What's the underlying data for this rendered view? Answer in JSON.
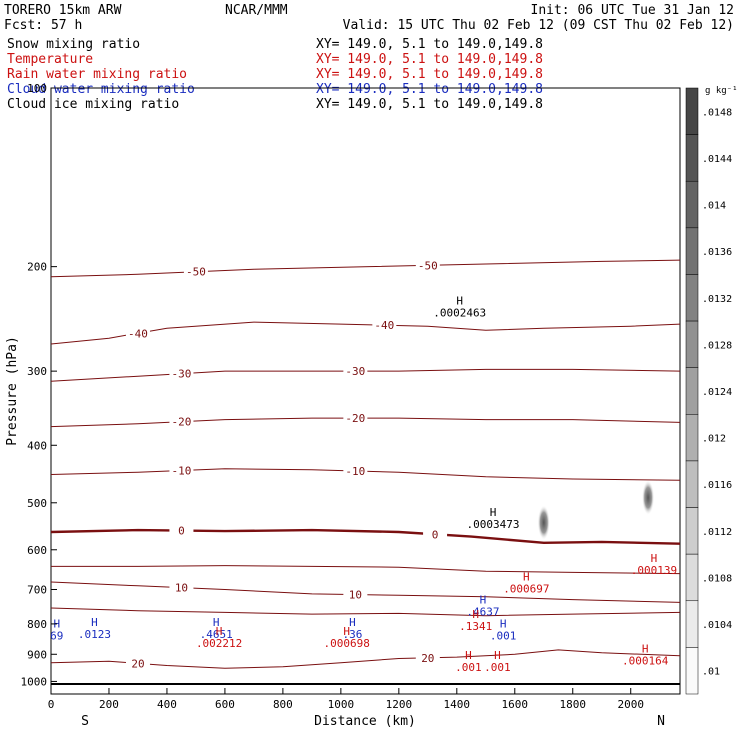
{
  "header": {
    "run": "TORERO  15km ARW",
    "center": "NCAR/MMM",
    "init": "Init: 06 UTC Tue 31 Jan 12",
    "fcst": "Fcst:   57 h",
    "valid": "Valid: 15 UTC Thu 02 Feb 12 (09 CST Thu 02 Feb 12)"
  },
  "colors": {
    "snow": "#000000",
    "temperature": "#7a0f10",
    "rain": "#cc1111",
    "cloud_water": "#1a2dbf",
    "cloud_ice": "#000000"
  },
  "chart_data": {
    "type": "contour_cross_section",
    "fields": [
      {
        "name": "Snow mixing ratio",
        "xy": "XY= 149.0,  5.1 to 149.0,149.8",
        "style": "shaded"
      },
      {
        "name": "Temperature",
        "xy": "XY= 149.0,  5.1 to 149.0,149.8",
        "style": "contour"
      },
      {
        "name": "Rain water mixing ratio",
        "xy": "XY= 149.0,  5.1 to 149.0,149.8",
        "style": "dashed contour"
      },
      {
        "name": "Cloud water mixing ratio",
        "xy": "XY= 149.0,  5.1 to 149.0,149.8",
        "style": "contour"
      },
      {
        "name": "Cloud ice mixing ratio",
        "xy": "XY= 149.0,  5.1 to 149.0,149.8",
        "style": "contour"
      }
    ],
    "xaxis": {
      "label": "Distance (km)",
      "range": [
        0,
        2170
      ],
      "ticks": [
        0,
        200,
        400,
        600,
        800,
        1000,
        1200,
        1400,
        1600,
        1800,
        2000
      ],
      "left_end": "S",
      "right_end": "N"
    },
    "yaxis": {
      "label": "Pressure (hPa)",
      "range": [
        1050,
        100
      ],
      "scale": "log",
      "ticks": [
        1000,
        900,
        800,
        700,
        600,
        500,
        400,
        300,
        200,
        100
      ]
    },
    "colorbar": {
      "unit": "g kg⁻¹",
      "ticks": [
        ".0148",
        ".0144",
        ".014",
        ".0136",
        ".0132",
        ".0128",
        ".0124",
        ".012",
        ".0116",
        ".0112",
        ".0108",
        ".0104",
        ".01"
      ]
    },
    "temperature_contours": [
      {
        "value": -50,
        "label": "-50",
        "points": [
          [
            0,
            208
          ],
          [
            300,
            206
          ],
          [
            700,
            202
          ],
          [
            1100,
            200
          ],
          [
            1500,
            198
          ],
          [
            1900,
            196
          ],
          [
            2170,
            195
          ]
        ]
      },
      {
        "value": -40,
        "label": "-40",
        "points": [
          [
            0,
            270
          ],
          [
            200,
            264
          ],
          [
            400,
            254
          ],
          [
            700,
            248
          ],
          [
            1000,
            250
          ],
          [
            1300,
            252
          ],
          [
            1500,
            256
          ],
          [
            1700,
            254
          ],
          [
            2000,
            252
          ],
          [
            2170,
            250
          ]
        ]
      },
      {
        "value": -30,
        "label": "-30",
        "points": [
          [
            0,
            312
          ],
          [
            300,
            306
          ],
          [
            600,
            300
          ],
          [
            900,
            300
          ],
          [
            1200,
            300
          ],
          [
            1500,
            298
          ],
          [
            1800,
            298
          ],
          [
            2170,
            300
          ]
        ]
      },
      {
        "value": -20,
        "label": "-20",
        "points": [
          [
            0,
            372
          ],
          [
            300,
            368
          ],
          [
            600,
            362
          ],
          [
            900,
            360
          ],
          [
            1200,
            360
          ],
          [
            1500,
            362
          ],
          [
            1800,
            362
          ],
          [
            2170,
            366
          ]
        ]
      },
      {
        "value": -10,
        "label": "-10",
        "points": [
          [
            0,
            448
          ],
          [
            300,
            444
          ],
          [
            600,
            438
          ],
          [
            900,
            440
          ],
          [
            1200,
            444
          ],
          [
            1500,
            452
          ],
          [
            1800,
            456
          ],
          [
            2170,
            458
          ]
        ]
      },
      {
        "value": 0,
        "label": "0",
        "points": [
          [
            0,
            560
          ],
          [
            300,
            556
          ],
          [
            600,
            558
          ],
          [
            900,
            556
          ],
          [
            1200,
            560
          ],
          [
            1450,
            570
          ],
          [
            1700,
            584
          ],
          [
            1900,
            582
          ],
          [
            2170,
            586
          ]
        ]
      },
      {
        "value": 5,
        "label": "",
        "points": [
          [
            0,
            640
          ],
          [
            300,
            640
          ],
          [
            600,
            638
          ],
          [
            900,
            640
          ],
          [
            1200,
            642
          ],
          [
            1500,
            652
          ],
          [
            1800,
            655
          ],
          [
            2170,
            658
          ]
        ]
      },
      {
        "value": 10,
        "label": "10",
        "points": [
          [
            0,
            680
          ],
          [
            300,
            690
          ],
          [
            600,
            700
          ],
          [
            900,
            712
          ],
          [
            1200,
            716
          ],
          [
            1500,
            720
          ],
          [
            1800,
            728
          ],
          [
            2170,
            736
          ]
        ]
      },
      {
        "value": 15,
        "label": "",
        "points": [
          [
            0,
            752
          ],
          [
            300,
            760
          ],
          [
            600,
            765
          ],
          [
            900,
            770
          ],
          [
            1200,
            768
          ],
          [
            1500,
            775
          ],
          [
            1800,
            770
          ],
          [
            2170,
            765
          ]
        ]
      },
      {
        "value": 20,
        "label": "20",
        "points": [
          [
            0,
            930
          ],
          [
            200,
            925
          ],
          [
            400,
            940
          ],
          [
            600,
            950
          ],
          [
            800,
            945
          ],
          [
            1000,
            930
          ],
          [
            1200,
            915
          ],
          [
            1400,
            910
          ],
          [
            1600,
            900
          ],
          [
            1750,
            885
          ],
          [
            1900,
            895
          ],
          [
            2170,
            905
          ]
        ]
      }
    ],
    "highs": [
      {
        "x": 1410,
        "p": 240,
        "value": ".0002463",
        "field": "Cloud ice mixing ratio"
      },
      {
        "x": 1525,
        "p": 545,
        "value": ".0003473",
        "field": "Cloud ice mixing ratio"
      },
      {
        "x": 2080,
        "p": 652,
        "value": ".000139",
        "field": "Rain water mixing ratio"
      },
      {
        "x": 1640,
        "p": 700,
        "value": ".000697",
        "field": "Rain water mixing ratio"
      },
      {
        "x": 1490,
        "p": 765,
        "value": ".4637",
        "field": "Cloud water mixing ratio"
      },
      {
        "x": 1465,
        "p": 810,
        "value": ".1341",
        "field": "Rain water mixing ratio"
      },
      {
        "x": 1560,
        "p": 840,
        "value": ".001",
        "field": "Cloud water mixing ratio"
      },
      {
        "x": 2050,
        "p": 925,
        "value": ".000164",
        "field": "Rain water mixing ratio"
      },
      {
        "x": 20,
        "p": 840,
        "value": "69",
        "field": "Cloud water mixing ratio"
      },
      {
        "x": 150,
        "p": 835,
        "value": ".0123",
        "field": "Cloud water mixing ratio"
      },
      {
        "x": 570,
        "p": 835,
        "value": ".4651",
        "field": "Cloud water mixing ratio"
      },
      {
        "x": 580,
        "p": 865,
        "value": ".002212",
        "field": "Rain water mixing ratio"
      },
      {
        "x": 1040,
        "p": 835,
        "value": ".36",
        "field": "Cloud water mixing ratio"
      },
      {
        "x": 1020,
        "p": 865,
        "value": ".000698",
        "field": "Rain water mixing ratio"
      },
      {
        "x": 1440,
        "p": 950,
        "value": ".001",
        "field": "Rain water mixing ratio"
      },
      {
        "x": 1540,
        "p": 950,
        "value": ".001",
        "field": "Rain water mixing ratio"
      }
    ],
    "snow_maxima": [
      {
        "x": 1700,
        "p": 540,
        "value": ".0148"
      },
      {
        "x": 2060,
        "p": 490,
        "value": ".014"
      }
    ],
    "surface_pressure": 1010
  }
}
